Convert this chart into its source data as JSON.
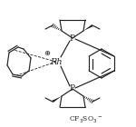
{
  "background": "#ffffff",
  "line_color": "#222222",
  "text_color": "#222222",
  "figsize": [
    1.5,
    1.4
  ],
  "dpi": 100,
  "rh_label": "Rh",
  "p_label": "P",
  "plus_label": "⊕",
  "anion_text": "CF$_3$SO$_3$$^-$",
  "font_size_rh": 7,
  "font_size_p": 6.5,
  "font_size_plus": 6,
  "font_size_anion": 5.5
}
